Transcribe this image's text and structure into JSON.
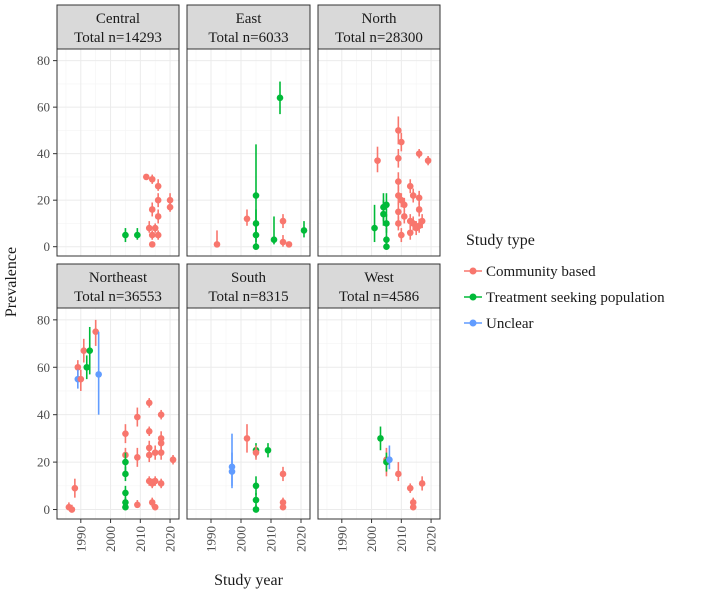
{
  "chart_data": {
    "type": "scatter",
    "subtype": "faceted point-range",
    "xlabel": "Study year",
    "ylabel": "Prevalence",
    "xlim": [
      1982,
      2023
    ],
    "ylim": [
      -4,
      85
    ],
    "x_ticks": [
      1990,
      2000,
      2010,
      2020
    ],
    "y_ticks": [
      0,
      20,
      40,
      60,
      80
    ],
    "grid": true,
    "legend": {
      "title": "Study type",
      "position": "right",
      "entries": [
        {
          "name": "Community based",
          "color": "#F8766D"
        },
        {
          "name": "Treatment seeking population",
          "color": "#00BA38"
        },
        {
          "name": "Unclear",
          "color": "#619CFF"
        }
      ]
    },
    "panels": [
      {
        "name": "Central",
        "total_label": "Total n=14293",
        "points": [
          {
            "x": 2005,
            "y": 5,
            "lo": 2,
            "hi": 8,
            "group": "Treatment seeking population"
          },
          {
            "x": 2009,
            "y": 5,
            "lo": 3,
            "hi": 8,
            "group": "Treatment seeking population"
          },
          {
            "x": 2012,
            "y": 30,
            "lo": 29,
            "hi": 31,
            "group": "Community based"
          },
          {
            "x": 2013,
            "y": 8,
            "lo": 6,
            "hi": 11,
            "group": "Community based"
          },
          {
            "x": 2014,
            "y": 29,
            "lo": 27,
            "hi": 31,
            "group": "Community based"
          },
          {
            "x": 2014,
            "y": 16,
            "lo": 13,
            "hi": 19,
            "group": "Community based"
          },
          {
            "x": 2014,
            "y": 5,
            "lo": 3,
            "hi": 7,
            "group": "Community based"
          },
          {
            "x": 2014,
            "y": 1,
            "lo": 0,
            "hi": 2,
            "group": "Community based"
          },
          {
            "x": 2015,
            "y": 8,
            "lo": 6,
            "hi": 10,
            "group": "Community based"
          },
          {
            "x": 2016,
            "y": 26,
            "lo": 24,
            "hi": 29,
            "group": "Community based"
          },
          {
            "x": 2016,
            "y": 20,
            "lo": 17,
            "hi": 23,
            "group": "Community based"
          },
          {
            "x": 2016,
            "y": 13,
            "lo": 10,
            "hi": 16,
            "group": "Community based"
          },
          {
            "x": 2016,
            "y": 5,
            "lo": 3,
            "hi": 7,
            "group": "Community based"
          },
          {
            "x": 2020,
            "y": 20,
            "lo": 17,
            "hi": 23,
            "group": "Community based"
          },
          {
            "x": 2020,
            "y": 17,
            "lo": 15,
            "hi": 20,
            "group": "Community based"
          }
        ]
      },
      {
        "name": "East",
        "total_label": "Total n=6033",
        "points": [
          {
            "x": 1992,
            "y": 1,
            "lo": 0,
            "hi": 7,
            "group": "Community based"
          },
          {
            "x": 2002,
            "y": 12,
            "lo": 9,
            "hi": 16,
            "group": "Community based"
          },
          {
            "x": 2005,
            "y": 22,
            "lo": 2,
            "hi": 44,
            "group": "Treatment seeking population"
          },
          {
            "x": 2005,
            "y": 10,
            "lo": 5,
            "hi": 16,
            "group": "Treatment seeking population"
          },
          {
            "x": 2005,
            "y": 5,
            "lo": 2,
            "hi": 9,
            "group": "Treatment seeking population"
          },
          {
            "x": 2005,
            "y": 0,
            "lo": 0,
            "hi": 2,
            "group": "Treatment seeking population"
          },
          {
            "x": 2011,
            "y": 3,
            "lo": 1,
            "hi": 13,
            "group": "Treatment seeking population"
          },
          {
            "x": 2013,
            "y": 64,
            "lo": 57,
            "hi": 71,
            "group": "Treatment seeking population"
          },
          {
            "x": 2014,
            "y": 11,
            "lo": 8,
            "hi": 14,
            "group": "Community based"
          },
          {
            "x": 2014,
            "y": 2,
            "lo": 0,
            "hi": 5,
            "group": "Community based"
          },
          {
            "x": 2016,
            "y": 1,
            "lo": 0,
            "hi": 2,
            "group": "Community based"
          },
          {
            "x": 2021,
            "y": 7,
            "lo": 4,
            "hi": 11,
            "group": "Treatment seeking population"
          }
        ]
      },
      {
        "name": "North",
        "total_label": "Total n=28300",
        "points": [
          {
            "x": 2001,
            "y": 8,
            "lo": 2,
            "hi": 18,
            "group": "Treatment seeking population"
          },
          {
            "x": 2002,
            "y": 37,
            "lo": 32,
            "hi": 43,
            "group": "Community based"
          },
          {
            "x": 2004,
            "y": 17,
            "lo": 11,
            "hi": 23,
            "group": "Treatment seeking population"
          },
          {
            "x": 2004,
            "y": 14,
            "lo": 9,
            "hi": 20,
            "group": "Treatment seeking population"
          },
          {
            "x": 2005,
            "y": 18,
            "lo": 13,
            "hi": 23,
            "group": "Treatment seeking population"
          },
          {
            "x": 2005,
            "y": 10,
            "lo": 6,
            "hi": 14,
            "group": "Treatment seeking population"
          },
          {
            "x": 2005,
            "y": 3,
            "lo": 0,
            "hi": 8,
            "group": "Treatment seeking population"
          },
          {
            "x": 2005,
            "y": 0,
            "lo": 0,
            "hi": 2,
            "group": "Treatment seeking population"
          },
          {
            "x": 2009,
            "y": 50,
            "lo": 44,
            "hi": 56,
            "group": "Community based"
          },
          {
            "x": 2009,
            "y": 38,
            "lo": 34,
            "hi": 42,
            "group": "Community based"
          },
          {
            "x": 2009,
            "y": 28,
            "lo": 24,
            "hi": 32,
            "group": "Community based"
          },
          {
            "x": 2009,
            "y": 22,
            "lo": 18,
            "hi": 26,
            "group": "Community based"
          },
          {
            "x": 2009,
            "y": 15,
            "lo": 11,
            "hi": 19,
            "group": "Community based"
          },
          {
            "x": 2009,
            "y": 10,
            "lo": 7,
            "hi": 13,
            "group": "Community based"
          },
          {
            "x": 2010,
            "y": 45,
            "lo": 41,
            "hi": 49,
            "group": "Community based"
          },
          {
            "x": 2010,
            "y": 20,
            "lo": 17,
            "hi": 23,
            "group": "Community based"
          },
          {
            "x": 2010,
            "y": 5,
            "lo": 2,
            "hi": 8,
            "group": "Community based"
          },
          {
            "x": 2011,
            "y": 18,
            "lo": 15,
            "hi": 21,
            "group": "Community based"
          },
          {
            "x": 2011,
            "y": 13,
            "lo": 10,
            "hi": 16,
            "group": "Community based"
          },
          {
            "x": 2013,
            "y": 26,
            "lo": 23,
            "hi": 29,
            "group": "Community based"
          },
          {
            "x": 2013,
            "y": 11,
            "lo": 8,
            "hi": 14,
            "group": "Community based"
          },
          {
            "x": 2013,
            "y": 6,
            "lo": 3,
            "hi": 9,
            "group": "Community based"
          },
          {
            "x": 2014,
            "y": 22,
            "lo": 19,
            "hi": 25,
            "group": "Community based"
          },
          {
            "x": 2014,
            "y": 10,
            "lo": 7,
            "hi": 13,
            "group": "Community based"
          },
          {
            "x": 2015,
            "y": 8,
            "lo": 5,
            "hi": 11,
            "group": "Community based"
          },
          {
            "x": 2016,
            "y": 40,
            "lo": 38,
            "hi": 42,
            "group": "Community based"
          },
          {
            "x": 2016,
            "y": 21,
            "lo": 18,
            "hi": 24,
            "group": "Community based"
          },
          {
            "x": 2016,
            "y": 16,
            "lo": 13,
            "hi": 19,
            "group": "Community based"
          },
          {
            "x": 2016,
            "y": 9,
            "lo": 6,
            "hi": 12,
            "group": "Community based"
          },
          {
            "x": 2017,
            "y": 11,
            "lo": 8,
            "hi": 14,
            "group": "Community based"
          },
          {
            "x": 2019,
            "y": 37,
            "lo": 35,
            "hi": 39,
            "group": "Community based"
          }
        ]
      },
      {
        "name": "Northeast",
        "total_label": "Total n=36553",
        "points": [
          {
            "x": 1986,
            "y": 1,
            "lo": 0,
            "hi": 3,
            "group": "Community based"
          },
          {
            "x": 1987,
            "y": 0,
            "lo": 0,
            "hi": 2,
            "group": "Community based"
          },
          {
            "x": 1988,
            "y": 9,
            "lo": 5,
            "hi": 13,
            "group": "Community based"
          },
          {
            "x": 1989,
            "y": 60,
            "lo": 56,
            "hi": 63,
            "group": "Community based"
          },
          {
            "x": 1989,
            "y": 55,
            "lo": 51,
            "hi": 59,
            "group": "Unclear"
          },
          {
            "x": 1990,
            "y": 55,
            "lo": 50,
            "hi": 59,
            "group": "Community based"
          },
          {
            "x": 1991,
            "y": 67,
            "lo": 62,
            "hi": 72,
            "group": "Community based"
          },
          {
            "x": 1992,
            "y": 60,
            "lo": 55,
            "hi": 65,
            "group": "Treatment seeking population"
          },
          {
            "x": 1993,
            "y": 67,
            "lo": 57,
            "hi": 77,
            "group": "Treatment seeking population"
          },
          {
            "x": 1995,
            "y": 75,
            "lo": 69,
            "hi": 80,
            "group": "Community based"
          },
          {
            "x": 1996,
            "y": 57,
            "lo": 40,
            "hi": 75,
            "group": "Unclear"
          },
          {
            "x": 2005,
            "y": 32,
            "lo": 28,
            "hi": 36,
            "group": "Community based"
          },
          {
            "x": 2005,
            "y": 23,
            "lo": 20,
            "hi": 26,
            "group": "Community based"
          },
          {
            "x": 2005,
            "y": 20,
            "lo": 16,
            "hi": 24,
            "group": "Treatment seeking population"
          },
          {
            "x": 2005,
            "y": 15,
            "lo": 12,
            "hi": 18,
            "group": "Treatment seeking population"
          },
          {
            "x": 2005,
            "y": 7,
            "lo": 4,
            "hi": 10,
            "group": "Treatment seeking population"
          },
          {
            "x": 2005,
            "y": 3,
            "lo": 1,
            "hi": 5,
            "group": "Treatment seeking population"
          },
          {
            "x": 2005,
            "y": 1,
            "lo": 0,
            "hi": 3,
            "group": "Treatment seeking population"
          },
          {
            "x": 2009,
            "y": 39,
            "lo": 35,
            "hi": 43,
            "group": "Community based"
          },
          {
            "x": 2009,
            "y": 22,
            "lo": 18,
            "hi": 26,
            "group": "Community based"
          },
          {
            "x": 2009,
            "y": 2,
            "lo": 1,
            "hi": 4,
            "group": "Community based"
          },
          {
            "x": 2013,
            "y": 45,
            "lo": 43,
            "hi": 47,
            "group": "Community based"
          },
          {
            "x": 2013,
            "y": 33,
            "lo": 31,
            "hi": 35,
            "group": "Community based"
          },
          {
            "x": 2013,
            "y": 26,
            "lo": 23,
            "hi": 29,
            "group": "Community based"
          },
          {
            "x": 2013,
            "y": 23,
            "lo": 20,
            "hi": 26,
            "group": "Community based"
          },
          {
            "x": 2013,
            "y": 12,
            "lo": 10,
            "hi": 14,
            "group": "Community based"
          },
          {
            "x": 2014,
            "y": 11,
            "lo": 9,
            "hi": 13,
            "group": "Community based"
          },
          {
            "x": 2014,
            "y": 3,
            "lo": 1,
            "hi": 5,
            "group": "Community based"
          },
          {
            "x": 2015,
            "y": 24,
            "lo": 21,
            "hi": 27,
            "group": "Community based"
          },
          {
            "x": 2015,
            "y": 12,
            "lo": 10,
            "hi": 14,
            "group": "Community based"
          },
          {
            "x": 2015,
            "y": 1,
            "lo": 0,
            "hi": 2,
            "group": "Community based"
          },
          {
            "x": 2017,
            "y": 40,
            "lo": 38,
            "hi": 42,
            "group": "Community based"
          },
          {
            "x": 2017,
            "y": 30,
            "lo": 27,
            "hi": 33,
            "group": "Community based"
          },
          {
            "x": 2017,
            "y": 28,
            "lo": 25,
            "hi": 31,
            "group": "Community based"
          },
          {
            "x": 2017,
            "y": 24,
            "lo": 21,
            "hi": 27,
            "group": "Community based"
          },
          {
            "x": 2017,
            "y": 11,
            "lo": 9,
            "hi": 13,
            "group": "Community based"
          },
          {
            "x": 2021,
            "y": 21,
            "lo": 19,
            "hi": 23,
            "group": "Community based"
          }
        ]
      },
      {
        "name": "South",
        "total_label": "Total n=8315",
        "points": [
          {
            "x": 1997,
            "y": 18,
            "lo": 10,
            "hi": 32,
            "group": "Unclear"
          },
          {
            "x": 1997,
            "y": 16,
            "lo": 9,
            "hi": 24,
            "group": "Unclear"
          },
          {
            "x": 2002,
            "y": 30,
            "lo": 24,
            "hi": 36,
            "group": "Community based"
          },
          {
            "x": 2005,
            "y": 25,
            "lo": 22,
            "hi": 28,
            "group": "Treatment seeking population"
          },
          {
            "x": 2005,
            "y": 24,
            "lo": 21,
            "hi": 27,
            "group": "Community based"
          },
          {
            "x": 2005,
            "y": 10,
            "lo": 6,
            "hi": 14,
            "group": "Treatment seeking population"
          },
          {
            "x": 2005,
            "y": 4,
            "lo": 1,
            "hi": 7,
            "group": "Treatment seeking population"
          },
          {
            "x": 2005,
            "y": 0,
            "lo": 0,
            "hi": 2,
            "group": "Treatment seeking population"
          },
          {
            "x": 2009,
            "y": 25,
            "lo": 22,
            "hi": 28,
            "group": "Treatment seeking population"
          },
          {
            "x": 2014,
            "y": 15,
            "lo": 12,
            "hi": 18,
            "group": "Community based"
          },
          {
            "x": 2014,
            "y": 3,
            "lo": 1,
            "hi": 5,
            "group": "Community based"
          },
          {
            "x": 2014,
            "y": 1,
            "lo": 0,
            "hi": 2,
            "group": "Community based"
          }
        ]
      },
      {
        "name": "West",
        "total_label": "Total n=4586",
        "points": [
          {
            "x": 2003,
            "y": 30,
            "lo": 25,
            "hi": 35,
            "group": "Treatment seeking population"
          },
          {
            "x": 2005,
            "y": 21,
            "lo": 14,
            "hi": 26,
            "group": "Community based"
          },
          {
            "x": 2005,
            "y": 20,
            "lo": 16,
            "hi": 24,
            "group": "Treatment seeking population"
          },
          {
            "x": 2006,
            "y": 21,
            "lo": 17,
            "hi": 27,
            "group": "Unclear"
          },
          {
            "x": 2009,
            "y": 15,
            "lo": 12,
            "hi": 20,
            "group": "Community based"
          },
          {
            "x": 2013,
            "y": 9,
            "lo": 7,
            "hi": 11,
            "group": "Community based"
          },
          {
            "x": 2014,
            "y": 3,
            "lo": 1,
            "hi": 5,
            "group": "Community based"
          },
          {
            "x": 2014,
            "y": 1,
            "lo": 0,
            "hi": 3,
            "group": "Community based"
          },
          {
            "x": 2017,
            "y": 11,
            "lo": 8,
            "hi": 14,
            "group": "Community based"
          }
        ]
      }
    ]
  }
}
